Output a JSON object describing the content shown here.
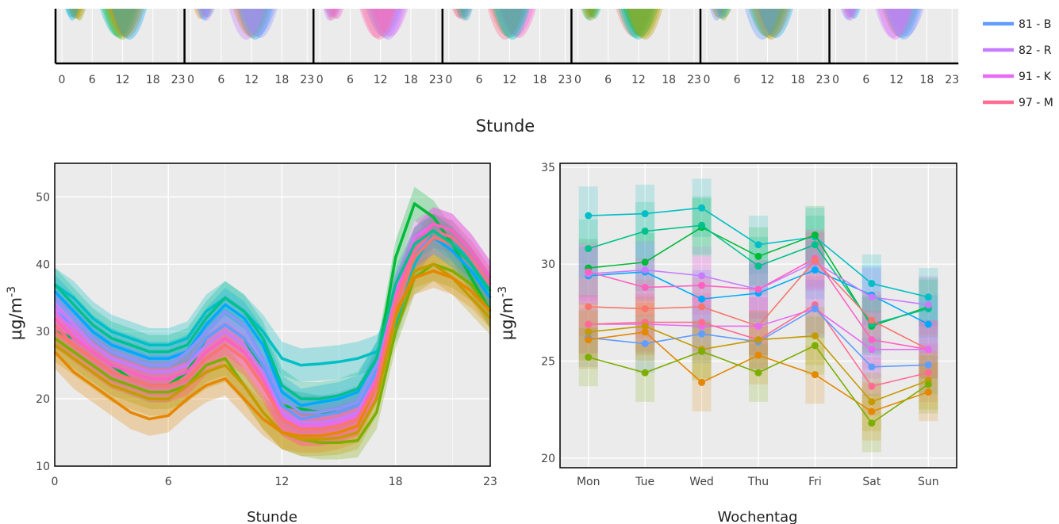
{
  "chart_data": [
    {
      "type": "line",
      "panel": "top-strip",
      "x_ticks": [
        "0",
        "6",
        "12",
        "18",
        "23"
      ],
      "xlim": [
        0,
        23
      ],
      "panels_count": 7,
      "xlabel": "Stunde"
    },
    {
      "type": "line",
      "panel": "hourly",
      "xlabel": "Stunde",
      "ylabel": "µg/m",
      "ylabel_sup": "-3",
      "x_ticks": [
        "0",
        "6",
        "12",
        "18",
        "23"
      ],
      "y_ticks": [
        "10",
        "20",
        "30",
        "40",
        "50"
      ],
      "xlim": [
        0,
        23
      ],
      "ylim": [
        10,
        55
      ],
      "x": [
        0,
        1,
        2,
        3,
        4,
        5,
        6,
        7,
        8,
        9,
        10,
        11,
        12,
        13,
        14,
        15,
        16,
        17,
        18,
        19,
        20,
        21,
        22,
        23
      ],
      "series": [
        {
          "color": "#00BFC4",
          "values": [
            37,
            35,
            32,
            30,
            29,
            28,
            28,
            29,
            33,
            35,
            33,
            30,
            26,
            25,
            25.2,
            25.5,
            26,
            27,
            31,
            40,
            45,
            44,
            40,
            35
          ],
          "band": 2.5
        },
        {
          "color": "#00BA38",
          "values": [
            30,
            29,
            27,
            25,
            23,
            22,
            22,
            24,
            29,
            31,
            29,
            24,
            19,
            18.5,
            18,
            18,
            19,
            25,
            41,
            49,
            47,
            43,
            38,
            33
          ],
          "band": 2.5
        },
        {
          "color": "#7CAE00",
          "values": [
            29,
            27,
            25,
            23,
            22,
            21,
            21,
            22,
            25,
            26,
            22,
            18,
            15,
            14,
            13.5,
            13.5,
            13.8,
            18,
            30,
            38,
            40,
            39,
            37,
            33
          ],
          "band": 2.5
        },
        {
          "color": "#C49A00",
          "values": [
            28,
            26,
            24,
            22,
            21,
            20,
            20,
            22,
            24,
            25,
            22,
            18,
            15,
            14,
            14,
            14.2,
            15,
            20,
            32,
            39,
            40,
            38,
            35,
            32
          ],
          "band": 2.5
        },
        {
          "color": "#E58700",
          "values": [
            27,
            24,
            22,
            20,
            18,
            17,
            17.5,
            20,
            22,
            23,
            20,
            17,
            15,
            14.5,
            14.5,
            15,
            16,
            22,
            33,
            38,
            39,
            38,
            36,
            33
          ],
          "band": 2.5
        },
        {
          "color": "#00A9FF",
          "values": [
            36,
            33,
            30,
            28,
            27,
            26,
            26,
            27,
            31,
            34,
            32,
            28,
            21,
            19,
            19.5,
            20,
            21,
            26,
            36,
            42,
            44,
            42,
            39,
            35
          ],
          "band": 2.5
        },
        {
          "color": "#619CFF",
          "values": [
            33,
            31,
            28,
            26,
            25,
            24,
            24,
            25,
            29,
            31,
            29,
            25,
            19,
            17,
            17.5,
            18,
            19,
            24,
            35,
            42,
            44,
            43,
            40,
            36
          ],
          "band": 2.5
        },
        {
          "color": "#8B93FF",
          "values": [
            35,
            32,
            29,
            27,
            26,
            25,
            25,
            27,
            30,
            33,
            31,
            26,
            20,
            18,
            18,
            18.5,
            19.5,
            25,
            36,
            43,
            45,
            44,
            41,
            37
          ],
          "band": 2.5
        },
        {
          "color": "#C77CFF",
          "values": [
            34,
            31,
            28,
            26,
            25,
            24,
            24,
            25,
            28,
            30,
            28,
            24,
            18,
            16.5,
            16.5,
            17,
            18,
            23,
            36,
            43,
            46,
            45,
            42,
            38
          ],
          "band": 2.5
        },
        {
          "color": "#E76BF3",
          "values": [
            33,
            30,
            27,
            25,
            24,
            23,
            23,
            24,
            27,
            29,
            27,
            23,
            17.5,
            16,
            16,
            16.5,
            17.5,
            23,
            36,
            44,
            46,
            45,
            42,
            38
          ],
          "band": 2.5
        },
        {
          "color": "#FF61C3",
          "values": [
            32,
            29,
            27,
            25,
            24,
            23,
            23,
            24,
            27,
            29,
            27,
            23,
            17,
            15.5,
            15.5,
            16,
            17,
            23,
            35,
            43,
            46,
            45,
            42,
            38
          ],
          "band": 2.5
        },
        {
          "color": "#FF6C91",
          "values": [
            31,
            28,
            26,
            24,
            23,
            22,
            22,
            23,
            26,
            28,
            26,
            22,
            17,
            15.5,
            15.5,
            16,
            17,
            22,
            34,
            42,
            45,
            44,
            41,
            37
          ],
          "band": 2.5
        },
        {
          "color": "#F8766D",
          "values": [
            30,
            28,
            26,
            24,
            23,
            22,
            22,
            23,
            26,
            28,
            26,
            22,
            17,
            15.5,
            15.5,
            16,
            17,
            22,
            34,
            41,
            44,
            43,
            40,
            36
          ],
          "band": 2.5
        },
        {
          "color": "#00C08B",
          "values": [
            37,
            34,
            31,
            29,
            28,
            27,
            27,
            28,
            32,
            35,
            33,
            29,
            22,
            20,
            20,
            20.5,
            21.5,
            26,
            37,
            43,
            45,
            43,
            40,
            36
          ],
          "band": 2.5
        }
      ]
    },
    {
      "type": "line",
      "panel": "weekday",
      "xlabel": "Wochentag",
      "ylabel": "µg/m",
      "ylabel_sup": "-3",
      "categories": [
        "Mon",
        "Tue",
        "Wed",
        "Thu",
        "Fri",
        "Sat",
        "Sun"
      ],
      "y_ticks": [
        "20",
        "25",
        "30",
        "35"
      ],
      "ylim": [
        19.5,
        35.2
      ],
      "series": [
        {
          "color": "#00BFC4",
          "values": [
            32.5,
            32.6,
            32.9,
            31.0,
            31.4,
            29.0,
            28.3
          ],
          "band": 1.5
        },
        {
          "color": "#00BA38",
          "values": [
            29.8,
            30.1,
            31.9,
            30.4,
            31.5,
            26.8,
            27.8
          ],
          "band": 1.5
        },
        {
          "color": "#00C08B",
          "values": [
            30.8,
            31.7,
            32.0,
            29.9,
            31.0,
            26.9,
            27.7
          ],
          "band": 1.5
        },
        {
          "color": "#00A9FF",
          "values": [
            29.4,
            29.6,
            28.2,
            28.5,
            29.7,
            28.4,
            26.9
          ],
          "band": 1.5
        },
        {
          "color": "#C77CFF",
          "values": [
            29.5,
            29.7,
            29.4,
            28.7,
            30.1,
            28.3,
            27.9
          ],
          "band": 1.5
        },
        {
          "color": "#FF61C3",
          "values": [
            29.6,
            28.8,
            28.9,
            28.7,
            30.3,
            26.1,
            25.6
          ],
          "band": 1.5
        },
        {
          "color": "#F8766D",
          "values": [
            27.8,
            27.7,
            27.8,
            26.8,
            30.2,
            27.1,
            25.6
          ],
          "band": 1.5
        },
        {
          "color": "#E76BF3",
          "values": [
            26.9,
            26.9,
            26.8,
            26.8,
            27.7,
            25.6,
            25.6
          ],
          "band": 1.5
        },
        {
          "color": "#FF6C91",
          "values": [
            26.9,
            27.0,
            27.0,
            26.1,
            27.9,
            23.7,
            24.4
          ],
          "band": 1.5
        },
        {
          "color": "#619CFF",
          "values": [
            26.2,
            25.9,
            26.4,
            26.0,
            27.7,
            24.7,
            24.8
          ],
          "band": 1.5
        },
        {
          "color": "#C49A00",
          "values": [
            26.5,
            26.8,
            25.6,
            26.1,
            26.3,
            22.9,
            24.0
          ],
          "band": 1.5
        },
        {
          "color": "#E58700",
          "values": [
            26.1,
            26.5,
            23.9,
            25.3,
            24.3,
            22.4,
            23.4
          ],
          "band": 1.5
        },
        {
          "color": "#7CAE00",
          "values": [
            25.2,
            24.4,
            25.5,
            24.4,
            25.8,
            21.8,
            23.8
          ],
          "band": 1.5
        }
      ]
    }
  ],
  "legend": [
    {
      "label": "81 - B",
      "color": "#619CFF"
    },
    {
      "label": "82 - R",
      "color": "#C77CFF"
    },
    {
      "label": "91 - K",
      "color": "#E76BF3"
    },
    {
      "label": "97 - M",
      "color": "#FF6C91"
    }
  ],
  "colors": {
    "panel_bg": "#EBEBEB",
    "grid": "#FFFFFF",
    "axis": "#000000"
  }
}
